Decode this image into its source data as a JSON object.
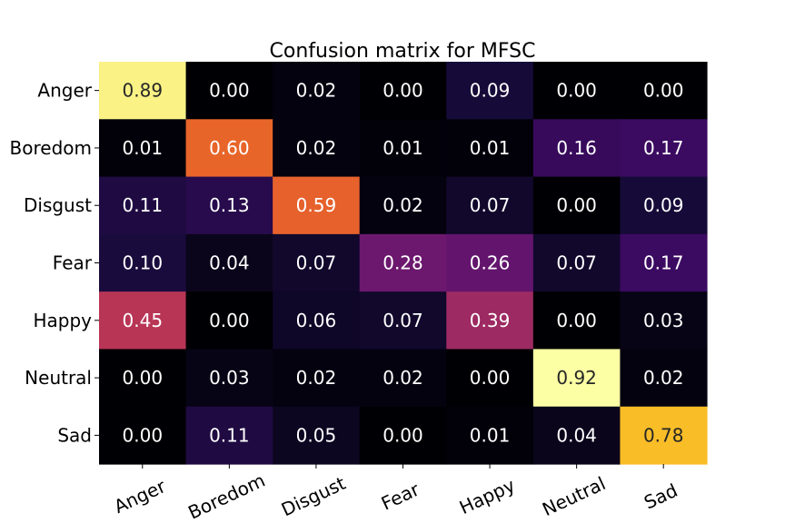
{
  "chart_data": {
    "type": "heatmap",
    "title": "Confusion matrix for MFSC",
    "xlabel": "",
    "ylabel": "",
    "rows": [
      "Anger",
      "Boredom",
      "Disgust",
      "Fear",
      "Happy",
      "Neutral",
      "Sad"
    ],
    "columns": [
      "Anger",
      "Boredom",
      "Disgust",
      "Fear",
      "Happy",
      "Neutral",
      "Sad"
    ],
    "values": [
      [
        0.89,
        0.0,
        0.02,
        0.0,
        0.09,
        0.0,
        0.0
      ],
      [
        0.01,
        0.6,
        0.02,
        0.01,
        0.01,
        0.16,
        0.17
      ],
      [
        0.11,
        0.13,
        0.59,
        0.02,
        0.07,
        0.0,
        0.09
      ],
      [
        0.1,
        0.04,
        0.07,
        0.28,
        0.26,
        0.07,
        0.17
      ],
      [
        0.45,
        0.0,
        0.06,
        0.07,
        0.39,
        0.0,
        0.03
      ],
      [
        0.0,
        0.03,
        0.02,
        0.02,
        0.0,
        0.92,
        0.02
      ],
      [
        0.0,
        0.11,
        0.05,
        0.0,
        0.01,
        0.04,
        0.78
      ]
    ],
    "colormap": "inferno",
    "vmin": 0.0,
    "vmax": 0.92,
    "value_format": "2 decimals",
    "x_tick_rotation_deg": 25
  }
}
